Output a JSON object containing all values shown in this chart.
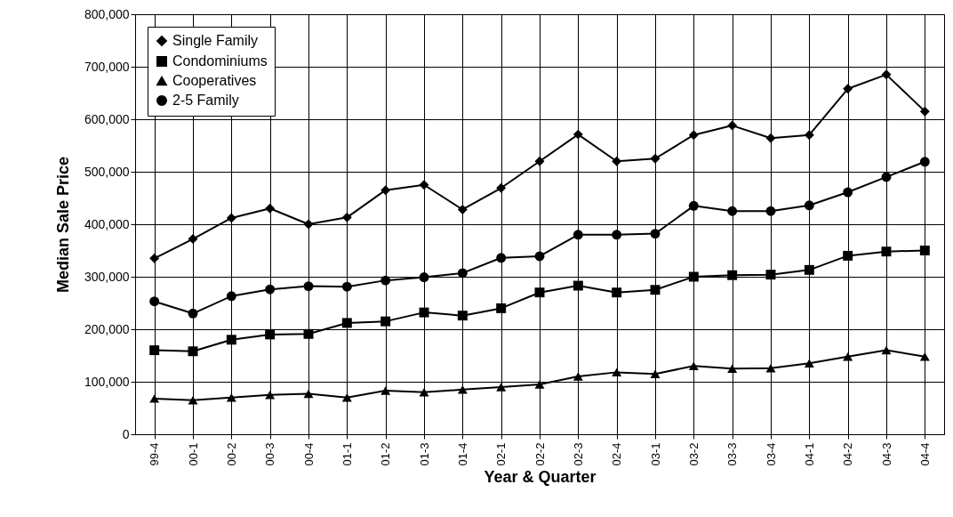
{
  "chart_data": {
    "type": "line",
    "xlabel": "Year & Quarter",
    "ylabel": "Median Sale Price",
    "categories": [
      "99-4",
      "00-1",
      "00-2",
      "00-3",
      "00-4",
      "01-1",
      "01-2",
      "01-3",
      "01-4",
      "02-1",
      "02-2",
      "02-3",
      "02-4",
      "03-1",
      "03-2",
      "03-3",
      "03-4",
      "04-1",
      "04-2",
      "04-3",
      "04-4"
    ],
    "series": [
      {
        "name": "Single Family",
        "color": "#000000",
        "marker": "diamond",
        "values": [
          335000,
          372000,
          412000,
          430000,
          400000,
          413000,
          465000,
          475000,
          428000,
          469000,
          520000,
          571000,
          520000,
          525000,
          570000,
          588000,
          564000,
          570000,
          658000,
          685000,
          615000
        ]
      },
      {
        "name": "Condominiums",
        "color": "#000000",
        "marker": "square",
        "values": [
          160000,
          158000,
          180000,
          190000,
          191000,
          212000,
          215000,
          232000,
          226000,
          240000,
          270000,
          283000,
          270000,
          275000,
          300000,
          303000,
          304000,
          313000,
          340000,
          348000,
          350000
        ]
      },
      {
        "name": "Cooperatives",
        "color": "#000000",
        "marker": "triangle",
        "values": [
          68000,
          65000,
          70000,
          75000,
          77000,
          70000,
          83000,
          80000,
          85000,
          90000,
          95000,
          110000,
          118000,
          115000,
          130000,
          125000,
          126000,
          135000,
          148000,
          160000,
          148000
        ]
      },
      {
        "name": "2-5 Family",
        "color": "#000000",
        "marker": "circle",
        "values": [
          253000,
          230000,
          263000,
          276000,
          282000,
          281000,
          293000,
          299000,
          307000,
          336000,
          339000,
          380000,
          380000,
          382000,
          435000,
          425000,
          425000,
          436000,
          461000,
          490000,
          519000
        ]
      }
    ],
    "ylim": [
      0,
      800000
    ],
    "yticks": [
      0,
      {
        "value": 100000,
        "label": "100,000"
      },
      {
        "value": 200000,
        "label": "200,000"
      },
      {
        "value": 300000,
        "label": "300,000"
      },
      {
        "value": 400000,
        "label": "400,000"
      },
      {
        "value": 500000,
        "label": "500,000"
      },
      {
        "value": 600000,
        "label": "600,000"
      },
      {
        "value": 700000,
        "label": "700,000"
      },
      {
        "value": 800000,
        "label": "800,000"
      }
    ],
    "grid": true,
    "legend": "top left",
    "line_style": "solid"
  }
}
